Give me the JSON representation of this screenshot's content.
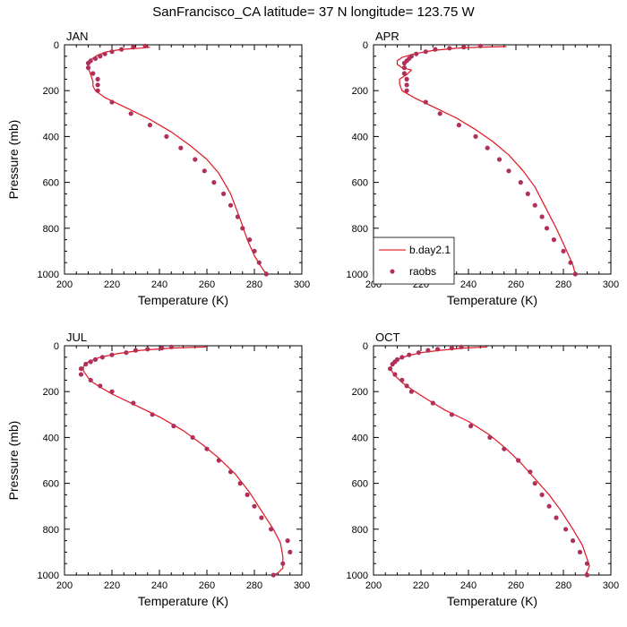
{
  "title": "SanFrancisco_CA  latitude= 37 N longitude= 123.75 W",
  "colors": {
    "model_line": "#e0141e",
    "obs_marker": "#b0305a",
    "axis": "#000000"
  },
  "legend": {
    "panel": "APR",
    "entries": [
      {
        "label": "b.day2.1",
        "type": "line"
      },
      {
        "label": "raobs",
        "type": "marker"
      }
    ]
  },
  "chart_data": [
    {
      "type": "line",
      "panel": "JAN",
      "xlabel": "Temperature (K)",
      "ylabel": "Pressure (mb)",
      "xlim": [
        200,
        300
      ],
      "ylim": [
        1000,
        0
      ],
      "xticks": [
        200,
        220,
        240,
        260,
        280,
        300
      ],
      "yticks": [
        0,
        200,
        400,
        600,
        800,
        1000
      ],
      "series": [
        {
          "name": "b.day2.1",
          "kind": "line",
          "points": [
            [
              236,
              10
            ],
            [
              232,
              15
            ],
            [
              224,
              20
            ],
            [
              218,
              30
            ],
            [
              214,
              45
            ],
            [
              211,
              65
            ],
            [
              210,
              80
            ],
            [
              210,
              100
            ],
            [
              211,
              130
            ],
            [
              212,
              160
            ],
            [
              212,
              180
            ],
            [
              213,
              200
            ],
            [
              217,
              230
            ],
            [
              225,
              270
            ],
            [
              235,
              320
            ],
            [
              245,
              380
            ],
            [
              253,
              440
            ],
            [
              260,
              500
            ],
            [
              265,
              560
            ],
            [
              270,
              650
            ],
            [
              274,
              760
            ],
            [
              277,
              850
            ],
            [
              280,
              920
            ],
            [
              283,
              970
            ],
            [
              285,
              1000
            ]
          ]
        },
        {
          "name": "raobs",
          "kind": "marker",
          "points": [
            [
              234,
              5
            ],
            [
              229,
              10
            ],
            [
              224,
              20
            ],
            [
              220,
              30
            ],
            [
              217,
              40
            ],
            [
              215,
              50
            ],
            [
              213,
              60
            ],
            [
              211,
              70
            ],
            [
              210,
              80
            ],
            [
              210,
              100
            ],
            [
              212,
              125
            ],
            [
              214,
              150
            ],
            [
              214,
              175
            ],
            [
              214,
              200
            ],
            [
              220,
              250
            ],
            [
              228,
              300
            ],
            [
              236,
              350
            ],
            [
              243,
              400
            ],
            [
              249,
              450
            ],
            [
              255,
              500
            ],
            [
              259,
              550
            ],
            [
              263,
              600
            ],
            [
              267,
              650
            ],
            [
              270,
              700
            ],
            [
              273,
              750
            ],
            [
              275,
              800
            ],
            [
              278,
              850
            ],
            [
              280,
              900
            ],
            [
              282,
              950
            ],
            [
              285,
              1000
            ]
          ]
        }
      ]
    },
    {
      "type": "line",
      "panel": "APR",
      "xlabel": "Temperature (K)",
      "ylabel": "",
      "xlim": [
        200,
        300
      ],
      "ylim": [
        1000,
        0
      ],
      "xticks": [
        200,
        220,
        240,
        260,
        280,
        300
      ],
      "yticks": [
        0,
        200,
        400,
        600,
        800,
        1000
      ],
      "series": [
        {
          "name": "b.day2.1",
          "kind": "line",
          "points": [
            [
              256,
              8
            ],
            [
              245,
              10
            ],
            [
              235,
              15
            ],
            [
              225,
              25
            ],
            [
              217,
              40
            ],
            [
              212,
              55
            ],
            [
              210,
              70
            ],
            [
              210,
              85
            ],
            [
              212,
              100
            ],
            [
              216,
              110
            ],
            [
              214,
              130
            ],
            [
              211,
              150
            ],
            [
              211,
              170
            ],
            [
              212,
              200
            ],
            [
              217,
              230
            ],
            [
              225,
              270
            ],
            [
              235,
              320
            ],
            [
              243,
              370
            ],
            [
              250,
              420
            ],
            [
              257,
              480
            ],
            [
              263,
              550
            ],
            [
              268,
              620
            ],
            [
              272,
              700
            ],
            [
              277,
              800
            ],
            [
              281,
              890
            ],
            [
              284,
              960
            ],
            [
              285,
              1000
            ]
          ]
        },
        {
          "name": "raobs",
          "kind": "marker",
          "points": [
            [
              245,
              5
            ],
            [
              238,
              10
            ],
            [
              232,
              15
            ],
            [
              226,
              20
            ],
            [
              222,
              30
            ],
            [
              218,
              40
            ],
            [
              216,
              50
            ],
            [
              215,
              60
            ],
            [
              214,
              70
            ],
            [
              213,
              80
            ],
            [
              213,
              100
            ],
            [
              213,
              125
            ],
            [
              214,
              150
            ],
            [
              214,
              175
            ],
            [
              214,
              200
            ],
            [
              222,
              250
            ],
            [
              228,
              300
            ],
            [
              236,
              350
            ],
            [
              243,
              400
            ],
            [
              248,
              450
            ],
            [
              253,
              500
            ],
            [
              257,
              550
            ],
            [
              262,
              600
            ],
            [
              265,
              650
            ],
            [
              268,
              700
            ],
            [
              271,
              750
            ],
            [
              273,
              800
            ],
            [
              276,
              850
            ],
            [
              280,
              900
            ],
            [
              283,
              950
            ],
            [
              285,
              1000
            ]
          ]
        }
      ]
    },
    {
      "type": "line",
      "panel": "JUL",
      "xlabel": "Temperature (K)",
      "ylabel": "Pressure (mb)",
      "xlim": [
        200,
        300
      ],
      "ylim": [
        1000,
        0
      ],
      "xticks": [
        200,
        220,
        240,
        260,
        280,
        300
      ],
      "yticks": [
        0,
        200,
        400,
        600,
        800,
        1000
      ],
      "series": [
        {
          "name": "b.day2.1",
          "kind": "line",
          "points": [
            [
              260,
              5
            ],
            [
              245,
              10
            ],
            [
              232,
              20
            ],
            [
              222,
              35
            ],
            [
              215,
              50
            ],
            [
              210,
              70
            ],
            [
              208,
              90
            ],
            [
              208,
              110
            ],
            [
              210,
              140
            ],
            [
              212,
              160
            ],
            [
              215,
              180
            ],
            [
              220,
              210
            ],
            [
              230,
              260
            ],
            [
              240,
              310
            ],
            [
              250,
              370
            ],
            [
              258,
              430
            ],
            [
              265,
              490
            ],
            [
              272,
              560
            ],
            [
              278,
              640
            ],
            [
              283,
              720
            ],
            [
              288,
              800
            ],
            [
              291,
              860
            ],
            [
              292,
              920
            ],
            [
              292,
              970
            ],
            [
              290,
              990
            ],
            [
              288,
              1000
            ]
          ]
        },
        {
          "name": "raobs",
          "kind": "marker",
          "points": [
            [
              245,
              5
            ],
            [
              241,
              10
            ],
            [
              235,
              15
            ],
            [
              230,
              20
            ],
            [
              226,
              30
            ],
            [
              220,
              40
            ],
            [
              216,
              50
            ],
            [
              213,
              60
            ],
            [
              211,
              70
            ],
            [
              209,
              80
            ],
            [
              207,
              100
            ],
            [
              207,
              125
            ],
            [
              211,
              150
            ],
            [
              215,
              175
            ],
            [
              220,
              200
            ],
            [
              229,
              250
            ],
            [
              237,
              300
            ],
            [
              246,
              350
            ],
            [
              254,
              400
            ],
            [
              260,
              450
            ],
            [
              265,
              500
            ],
            [
              270,
              550
            ],
            [
              274,
              600
            ],
            [
              277,
              650
            ],
            [
              280,
              700
            ],
            [
              283,
              750
            ],
            [
              287,
              800
            ],
            [
              294,
              850
            ],
            [
              295,
              900
            ],
            [
              292,
              950
            ],
            [
              288,
              1000
            ]
          ]
        }
      ]
    },
    {
      "type": "line",
      "panel": "OCT",
      "xlabel": "Temperature (K)",
      "ylabel": "",
      "xlim": [
        200,
        300
      ],
      "ylim": [
        1000,
        0
      ],
      "xticks": [
        200,
        220,
        240,
        260,
        280,
        300
      ],
      "yticks": [
        0,
        200,
        400,
        600,
        800,
        1000
      ],
      "series": [
        {
          "name": "b.day2.1",
          "kind": "line",
          "points": [
            [
              248,
              5
            ],
            [
              238,
              10
            ],
            [
              228,
              20
            ],
            [
              220,
              30
            ],
            [
              214,
              45
            ],
            [
              210,
              60
            ],
            [
              208,
              80
            ],
            [
              207,
              100
            ],
            [
              209,
              130
            ],
            [
              212,
              160
            ],
            [
              216,
              190
            ],
            [
              222,
              230
            ],
            [
              230,
              280
            ],
            [
              240,
              330
            ],
            [
              249,
              390
            ],
            [
              256,
              450
            ],
            [
              262,
              510
            ],
            [
              268,
              580
            ],
            [
              274,
              650
            ],
            [
              279,
              720
            ],
            [
              284,
              800
            ],
            [
              288,
              870
            ],
            [
              290,
              930
            ],
            [
              291,
              960
            ],
            [
              290,
              985
            ],
            [
              289,
              1000
            ]
          ]
        },
        {
          "name": "raobs",
          "kind": "marker",
          "points": [
            [
              237,
              5
            ],
            [
              233,
              10
            ],
            [
              227,
              15
            ],
            [
              223,
              20
            ],
            [
              219,
              30
            ],
            [
              215,
              40
            ],
            [
              212,
              50
            ],
            [
              210,
              60
            ],
            [
              209,
              70
            ],
            [
              208,
              80
            ],
            [
              207,
              100
            ],
            [
              209,
              125
            ],
            [
              212,
              150
            ],
            [
              214,
              175
            ],
            [
              216,
              200
            ],
            [
              225,
              250
            ],
            [
              233,
              300
            ],
            [
              241,
              350
            ],
            [
              249,
              400
            ],
            [
              255,
              450
            ],
            [
              261,
              500
            ],
            [
              266,
              550
            ],
            [
              268,
              600
            ],
            [
              271,
              650
            ],
            [
              274,
              700
            ],
            [
              277,
              750
            ],
            [
              281,
              800
            ],
            [
              284,
              850
            ],
            [
              287,
              900
            ],
            [
              290,
              950
            ],
            [
              290,
              1000
            ]
          ]
        }
      ]
    }
  ]
}
